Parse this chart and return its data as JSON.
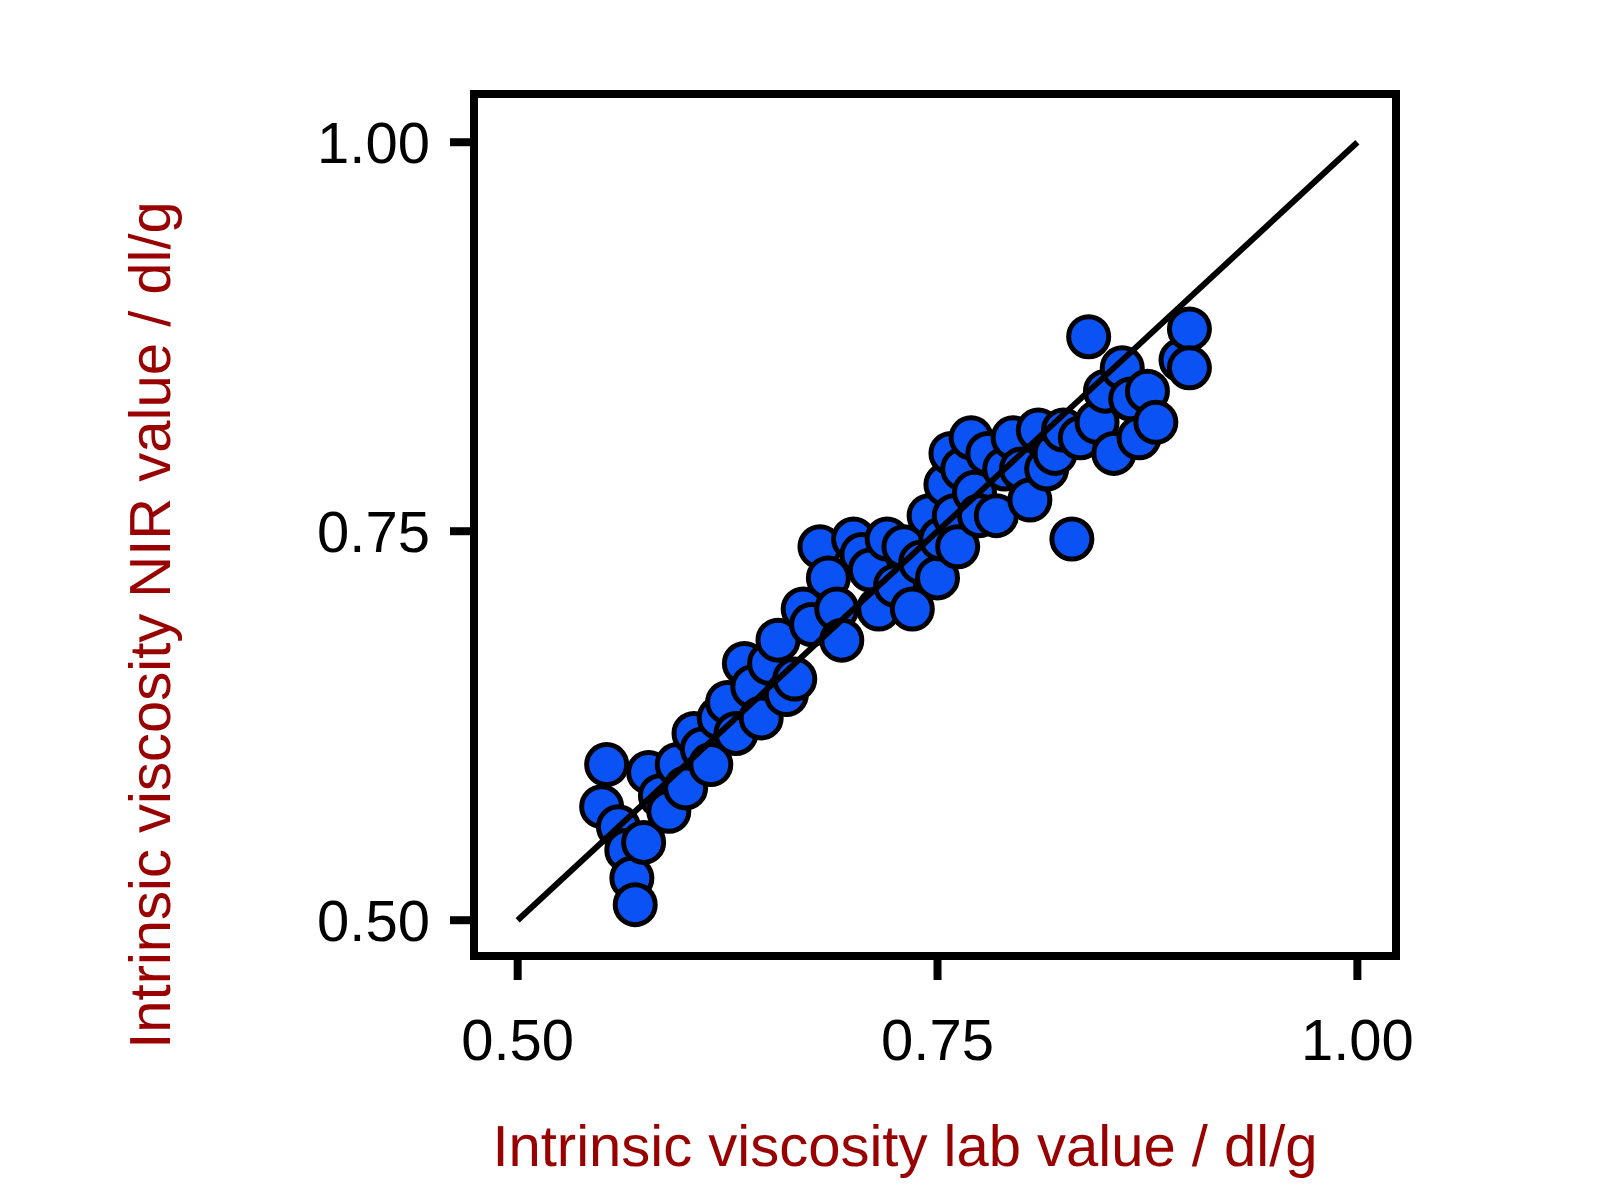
{
  "chart_data": {
    "type": "scatter",
    "xlabel": "Intrinsic viscosity lab value / dl/g",
    "ylabel": "Intrinsic viscosity NIR value / dl/g",
    "xlim": [
      0.474,
      1.023
    ],
    "ylim": [
      0.477,
      1.031
    ],
    "xticks": [
      {
        "value": 0.5,
        "label": "0.50"
      },
      {
        "value": 0.75,
        "label": "0.75"
      },
      {
        "value": 1,
        "label": "1.00"
      }
    ],
    "yticks": [
      {
        "value": 0.5,
        "label": "0.50"
      },
      {
        "value": 0.75,
        "label": "0.75"
      },
      {
        "value": 1,
        "label": "1.00"
      }
    ],
    "grid": false,
    "marker": "circle",
    "series": [
      {
        "color": "#0b52f5",
        "x": [
          0.55,
          0.553,
          0.56,
          0.565,
          0.568,
          0.57,
          0.575,
          0.578,
          0.585,
          0.59,
          0.595,
          0.6,
          0.605,
          0.61,
          0.615,
          0.62,
          0.625,
          0.63,
          0.635,
          0.64,
          0.645,
          0.65,
          0.655,
          0.66,
          0.665,
          0.67,
          0.675,
          0.68,
          0.685,
          0.69,
          0.693,
          0.7,
          0.705,
          0.71,
          0.715,
          0.72,
          0.725,
          0.73,
          0.735,
          0.74,
          0.745,
          0.75,
          0.752,
          0.755,
          0.758,
          0.76,
          0.762,
          0.765,
          0.77,
          0.772,
          0.775,
          0.78,
          0.785,
          0.79,
          0.795,
          0.8,
          0.805,
          0.81,
          0.815,
          0.82,
          0.825,
          0.83,
          0.835,
          0.84,
          0.845,
          0.85,
          0.855,
          0.86,
          0.865,
          0.87,
          0.875,
          0.88,
          0.895,
          0.9,
          0.9
        ],
        "values": [
          0.573,
          0.6,
          0.56,
          0.545,
          0.527,
          0.51,
          0.55,
          0.595,
          0.58,
          0.57,
          0.6,
          0.585,
          0.62,
          0.61,
          0.6,
          0.63,
          0.64,
          0.62,
          0.665,
          0.65,
          0.63,
          0.665,
          0.68,
          0.645,
          0.655,
          0.7,
          0.69,
          0.74,
          0.72,
          0.7,
          0.68,
          0.745,
          0.735,
          0.725,
          0.7,
          0.745,
          0.715,
          0.74,
          0.7,
          0.73,
          0.76,
          0.72,
          0.745,
          0.78,
          0.8,
          0.76,
          0.74,
          0.79,
          0.81,
          0.775,
          0.76,
          0.8,
          0.76,
          0.79,
          0.81,
          0.79,
          0.77,
          0.815,
          0.79,
          0.8,
          0.815,
          0.745,
          0.81,
          0.875,
          0.82,
          0.84,
          0.8,
          0.855,
          0.835,
          0.81,
          0.84,
          0.82,
          0.86,
          0.88,
          0.855
        ]
      },
      {
        "type": "line",
        "marker": "none",
        "color": "#000000",
        "x": [
          0.5,
          1
        ],
        "values": [
          0.5,
          1
        ]
      }
    ]
  }
}
